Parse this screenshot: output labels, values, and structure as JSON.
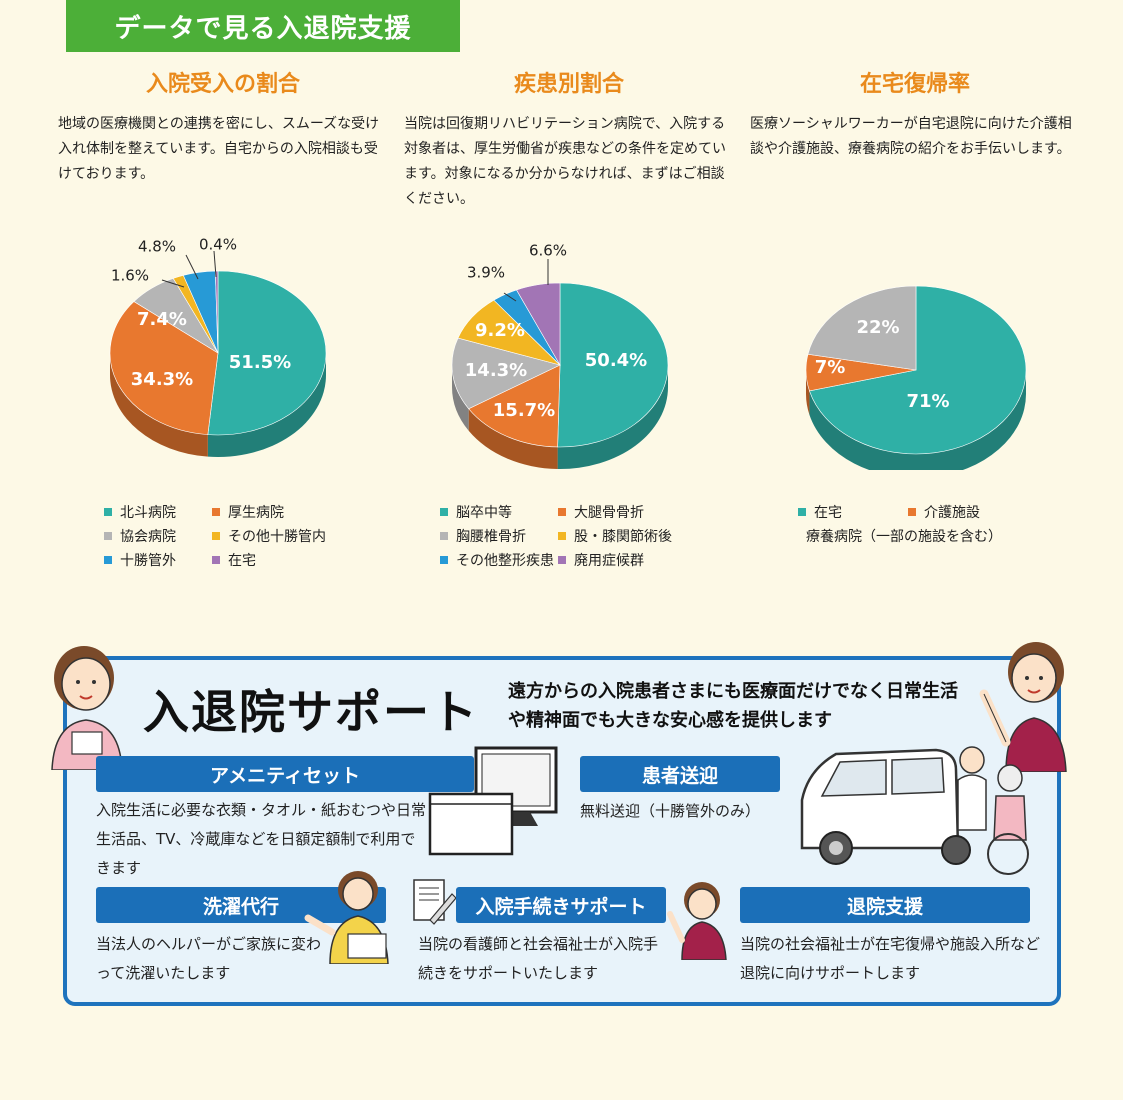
{
  "header": {
    "title": "データで見る入退院支援"
  },
  "sections": [
    {
      "title": "入院受入の割合",
      "text": "地域の医療機関との連携を密にし、スムーズな受け入れ体制を整えています。自宅からの入院相談も受けております。"
    },
    {
      "title": "疾患別割合",
      "text": "当院は回復期リハビリテーション病院で、入院する対象者は、厚生労働省が疾患などの条件を定めています。対象になるか分からなければ、まずはご相談ください。"
    },
    {
      "title": "在宅復帰率",
      "text": "医療ソーシャルワーカーが自宅退院に向けた介護相談や介護施設、療養病院の紹介をお手伝いします。"
    }
  ],
  "chart_data": [
    {
      "type": "pie",
      "title": "入院受入の割合",
      "categories": [
        "北斗病院",
        "厚生病院",
        "協会病院",
        "その他十勝管内",
        "十勝管外",
        "在宅"
      ],
      "values": [
        51.5,
        34.3,
        7.4,
        1.6,
        4.8,
        0.4
      ],
      "labels": [
        "51.5%",
        "34.3%",
        "7.4%",
        "1.6%",
        "4.8%",
        "0.4%"
      ],
      "colors": [
        "#2fb0a6",
        "#e8782f",
        "#b5b5b5",
        "#f2b622",
        "#279ad6",
        "#a275b5"
      ]
    },
    {
      "type": "pie",
      "title": "疾患別割合",
      "categories": [
        "脳卒中等",
        "大腿骨骨折",
        "胸腰椎骨折",
        "股・膝関節術後",
        "その他整形疾患",
        "廃用症候群"
      ],
      "values": [
        50.4,
        15.7,
        14.3,
        9.2,
        3.9,
        6.6
      ],
      "labels": [
        "50.4%",
        "15.7%",
        "14.3%",
        "9.2%",
        "3.9%",
        "6.6%"
      ],
      "colors": [
        "#2fb0a6",
        "#e8782f",
        "#b5b5b5",
        "#f2b622",
        "#279ad6",
        "#a275b5"
      ]
    },
    {
      "type": "pie",
      "title": "在宅復帰率",
      "categories": [
        "在宅",
        "介護施設",
        "療養病院（一部の施設を含む）"
      ],
      "values": [
        71,
        7,
        22
      ],
      "labels": [
        "71%",
        "7%",
        "22%"
      ],
      "colors": [
        "#2fb0a6",
        "#e8782f",
        "#b5b5b5"
      ]
    }
  ],
  "support": {
    "title": "入退院サポート",
    "lead": "遠方からの入院患者さまにも医療面だけでなく日常生活や精神面でも大きな安心感を提供します",
    "items": [
      {
        "heading": "アメニティセット",
        "text": "入院生活に必要な衣類・タオル・紙おむつや日常生活品、TV、冷蔵庫などを日額定額制で利用できます"
      },
      {
        "heading": "患者送迎",
        "text": "無料送迎（十勝管外のみ）"
      },
      {
        "heading": "洗濯代行",
        "text": "当法人のヘルパーがご家族に変わって洗濯いたします"
      },
      {
        "heading": "入院手続きサポート",
        "text": "当院の看護師と社会福祉士が入院手続きをサポートいたします"
      },
      {
        "heading": "退院支援",
        "text": "当院の社会福祉士が在宅復帰や施設入所など退院に向けサポートします"
      }
    ]
  }
}
